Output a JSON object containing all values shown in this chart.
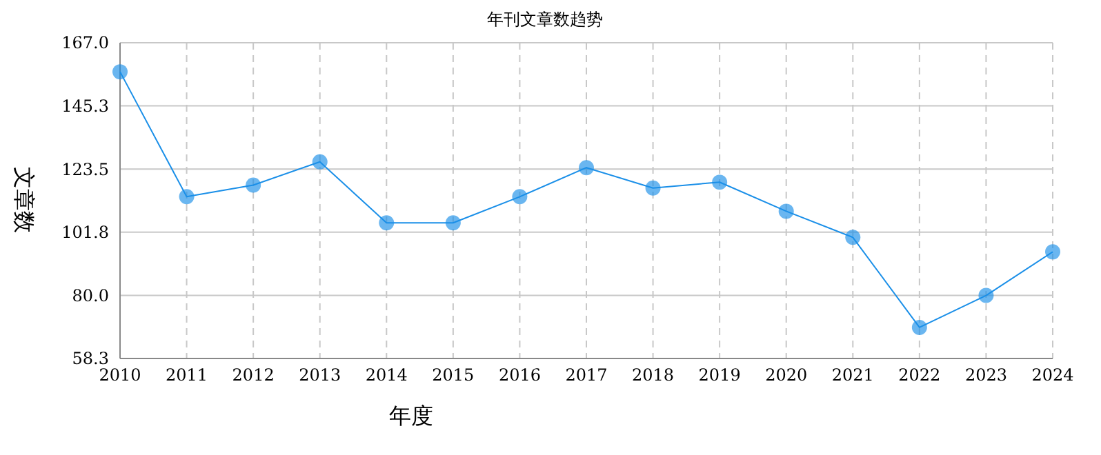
{
  "chart_data": {
    "type": "line",
    "title": "年刊文章数趋势",
    "xlabel": "年度",
    "ylabel": "文章数",
    "categories": [
      "2010",
      "2011",
      "2012",
      "2013",
      "2014",
      "2015",
      "2016",
      "2017",
      "2018",
      "2019",
      "2020",
      "2021",
      "2022",
      "2023",
      "2024"
    ],
    "series": [
      {
        "color": "#1a8fe8",
        "values": [
          157,
          114,
          118,
          126,
          105,
          105,
          114,
          124,
          117,
          119,
          109,
          100,
          69,
          80,
          95
        ]
      }
    ],
    "ylim": [
      58.3,
      167.0
    ],
    "yticks": [
      {
        "value": 58.3,
        "label": "58.3"
      },
      {
        "value": 80,
        "label": "80.0"
      },
      {
        "value": 101.8,
        "label": "101.8"
      },
      {
        "value": 123.5,
        "label": "123.5"
      },
      {
        "value": 145.3,
        "label": "145.3"
      },
      {
        "value": 167,
        "label": "167.0"
      }
    ],
    "grid": true,
    "marker": "circle",
    "line_style": "solid"
  }
}
